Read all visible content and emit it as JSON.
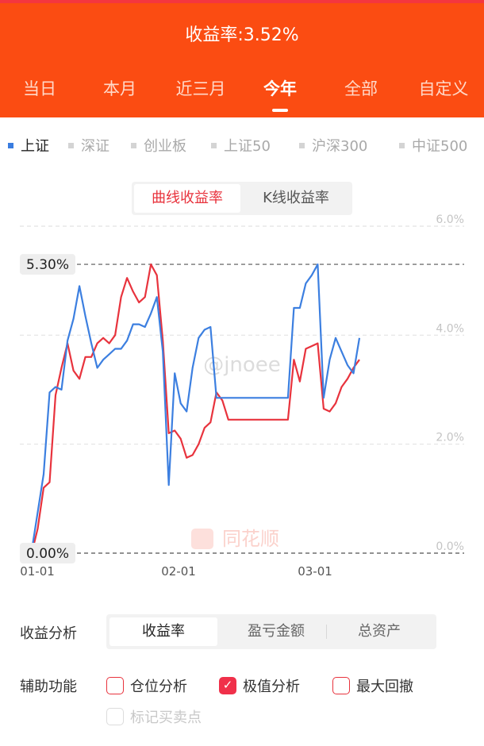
{
  "header": {
    "return_text": "收益率:3.52%"
  },
  "period_tabs": [
    {
      "label": "当日",
      "active": false
    },
    {
      "label": "本月",
      "active": false
    },
    {
      "label": "近三月",
      "active": false
    },
    {
      "label": "今年",
      "active": true
    },
    {
      "label": "全部",
      "active": false
    },
    {
      "label": "自定义",
      "active": false
    }
  ],
  "indices": [
    {
      "label": "上证",
      "active": true
    },
    {
      "label": "深证",
      "active": false
    },
    {
      "label": "创业板",
      "active": false
    },
    {
      "label": "上证50",
      "active": false
    },
    {
      "label": "沪深300",
      "active": false
    },
    {
      "label": "中证500",
      "active": false
    }
  ],
  "chart_mode": {
    "options": [
      "曲线收益率",
      "K线收益率"
    ],
    "selected": "曲线收益率"
  },
  "chart_data": {
    "type": "line",
    "y_ticks": [
      "6.0%",
      "4.0%",
      "2.0%",
      "0.0%"
    ],
    "x_ticks": [
      "01-01",
      "02-01",
      "03-01"
    ],
    "max_marker": "5.30%",
    "min_marker": "0.00%",
    "ylim": [
      0,
      6.0
    ],
    "series": [
      {
        "color": "#e8333d",
        "values": [
          0.0,
          0.45,
          1.2,
          1.3,
          2.9,
          3.4,
          3.85,
          3.35,
          3.2,
          3.6,
          3.6,
          3.85,
          3.95,
          3.85,
          4.0,
          4.7,
          5.05,
          4.8,
          4.6,
          4.7,
          5.3,
          5.1,
          3.9,
          2.2,
          2.25,
          2.1,
          1.75,
          1.8,
          2.0,
          2.3,
          2.4,
          2.95,
          2.8,
          2.45,
          2.45,
          2.45,
          2.45,
          2.45,
          2.45,
          2.45,
          2.45,
          2.45,
          2.45,
          2.45,
          3.55,
          3.15,
          3.75,
          3.8,
          3.85,
          2.65,
          2.6,
          2.75,
          3.05,
          3.2,
          3.4,
          3.55
        ]
      },
      {
        "color": "#3c7fe0",
        "values": [
          0.05,
          0.75,
          1.45,
          2.95,
          3.05,
          3.0,
          3.9,
          4.3,
          4.9,
          4.35,
          3.85,
          3.4,
          3.55,
          3.65,
          3.75,
          3.75,
          3.9,
          4.2,
          4.2,
          4.15,
          4.4,
          4.7,
          3.7,
          1.25,
          3.3,
          2.75,
          2.6,
          3.4,
          3.95,
          4.1,
          4.15,
          2.85,
          2.85,
          2.85,
          2.85,
          2.85,
          2.85,
          2.85,
          2.85,
          2.85,
          2.85,
          2.85,
          2.85,
          2.85,
          4.5,
          4.5,
          4.95,
          5.1,
          5.3,
          2.85,
          3.55,
          3.95,
          3.7,
          3.45,
          3.3,
          3.95
        ]
      }
    ]
  },
  "watermarks": {
    "handle": "@jnoee",
    "brand": "同花顺"
  },
  "analysis": {
    "label": "收益分析",
    "options": [
      "收益率",
      "盈亏金额",
      "总资产"
    ],
    "selected": "收益率"
  },
  "aux": {
    "label": "辅助功能",
    "options": [
      {
        "label": "仓位分析",
        "checked": false,
        "disabled": false
      },
      {
        "label": "极值分析",
        "checked": true,
        "disabled": false
      },
      {
        "label": "最大回撤",
        "checked": false,
        "disabled": false
      },
      {
        "label": "标记买卖点",
        "checked": false,
        "disabled": true
      }
    ]
  }
}
